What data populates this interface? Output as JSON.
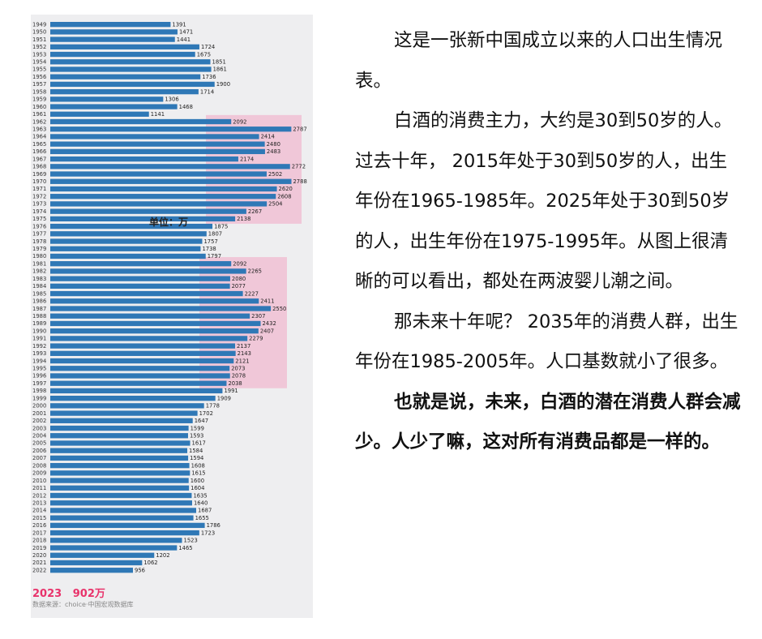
{
  "chart_data": {
    "type": "bar",
    "orientation": "horizontal",
    "unit_label": "单位：万",
    "footer_highlight": "2023   902万",
    "source": "数据来源：choice·中国宏观数据库",
    "categories": [
      "1949",
      "1950",
      "1951",
      "1952",
      "1953",
      "1954",
      "1955",
      "1956",
      "1957",
      "1958",
      "1959",
      "1960",
      "1961",
      "1962",
      "1963",
      "1964",
      "1965",
      "1966",
      "1967",
      "1968",
      "1969",
      "1970",
      "1971",
      "1972",
      "1973",
      "1974",
      "1975",
      "1976",
      "1977",
      "1978",
      "1979",
      "1980",
      "1981",
      "1982",
      "1983",
      "1984",
      "1985",
      "1986",
      "1987",
      "1988",
      "1989",
      "1990",
      "1991",
      "1992",
      "1993",
      "1994",
      "1995",
      "1996",
      "1997",
      "1998",
      "1999",
      "2000",
      "2001",
      "2002",
      "2003",
      "2004",
      "2005",
      "2006",
      "2007",
      "2008",
      "2009",
      "2010",
      "2011",
      "2012",
      "2013",
      "2014",
      "2015",
      "2016",
      "2017",
      "2018",
      "2019",
      "2020",
      "2021",
      "2022"
    ],
    "values": [
      1391,
      1471,
      1441,
      1724,
      1675,
      1851,
      1861,
      1736,
      1900,
      1714,
      1306,
      1468,
      1141,
      2092,
      2787,
      2414,
      2480,
      2483,
      2174,
      2772,
      2502,
      2788,
      2620,
      2608,
      2504,
      2267,
      2138,
      1875,
      1807,
      1757,
      1738,
      1797,
      2092,
      2265,
      2080,
      2077,
      2227,
      2411,
      2550,
      2307,
      2432,
      2407,
      2279,
      2137,
      2143,
      2121,
      2073,
      2078,
      2038,
      1991,
      1909,
      1778,
      1702,
      1647,
      1599,
      1593,
      1617,
      1584,
      1594,
      1608,
      1615,
      1600,
      1604,
      1635,
      1640,
      1687,
      1655,
      1786,
      1723,
      1523,
      1465,
      1202,
      1062,
      956
    ],
    "highlight_ranges": [
      [
        "1962",
        "1975"
      ],
      [
        "1981",
        "1997"
      ]
    ],
    "highlight_color": "#f2a7c4",
    "bar_color": "#2f78b6",
    "accent_color": "#e8336b"
  },
  "article": {
    "p1": "这是一张新中国成立以来的人口出生情况表。",
    "p2": "白酒的消费主力，大约是30到50岁的人。过去十年， 2015年处于30到50岁的人，出生年份在1965-1985年。2025年处于30到50岁的人，出生年份在1975-1995年。从图上很清晰的可以看出，都处在两波婴儿潮之间。",
    "p3": "那未来十年呢？ 2035年的消费人群，出生年份在1985-2005年。人口基数就小了很多。",
    "p4": "也就是说，未来，白酒的潜在消费人群会减少。人少了嘛，这对所有消费品都是一样的。"
  }
}
